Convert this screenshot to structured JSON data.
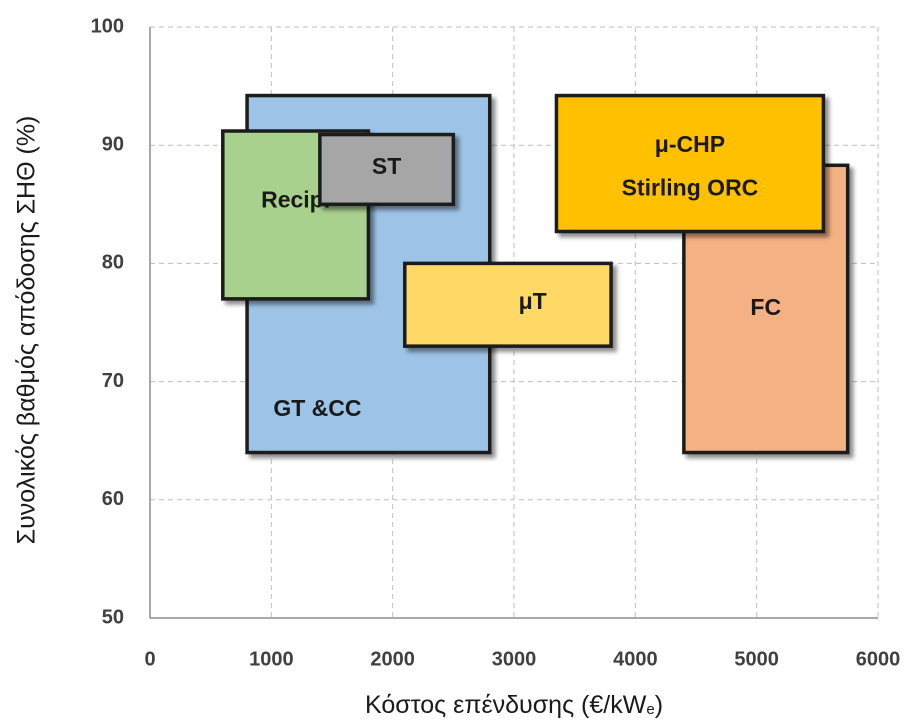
{
  "chart_data": {
    "type": "range-box",
    "xlabel": [
      "Κόστος επένδυσης (€/kW",
      "e",
      ")"
    ],
    "ylabel": "Συνολικός βαθμός απόδοσης ΣΗΘ (%)",
    "xlim": [
      0,
      6000
    ],
    "xticks": [
      0,
      1000,
      2000,
      3000,
      4000,
      5000,
      6000
    ],
    "ylim": [
      50,
      100
    ],
    "yticks": [
      50,
      60,
      70,
      80,
      90,
      100
    ],
    "grid": true,
    "boxes": [
      {
        "label": [
          "GT &CC"
        ],
        "x": [
          800,
          2800
        ],
        "y": [
          64,
          94.2
        ],
        "color": "#9dc3e6"
      },
      {
        "label": [
          "Recip."
        ],
        "x": [
          600,
          1800
        ],
        "y": [
          77,
          91.2
        ],
        "color": "#a9d18e"
      },
      {
        "label": [
          "ST"
        ],
        "x": [
          1400,
          2500
        ],
        "y": [
          85,
          90.9
        ],
        "color": "#a6a6a6"
      },
      {
        "label": [
          "μT"
        ],
        "x": [
          2100,
          3800
        ],
        "y": [
          73,
          80
        ],
        "color": "#ffd966"
      },
      {
        "label": [
          "FC"
        ],
        "x": [
          4400,
          5750
        ],
        "y": [
          64,
          88.3
        ],
        "color": "#f4b183"
      },
      {
        "label": [
          "μ-CHP",
          "Stirling ORC"
        ],
        "x": [
          3350,
          5550
        ],
        "y": [
          82.7,
          94.2
        ],
        "color": "#ffc000"
      }
    ]
  }
}
